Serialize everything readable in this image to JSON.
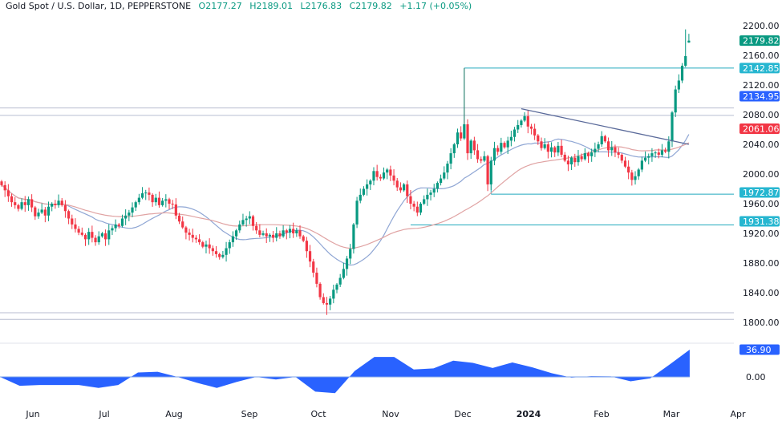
{
  "header": {
    "symbol": "Gold Spot / U.S. Dollar, 1D, PEPPERSTONE",
    "open": "O2177.27",
    "high": "H2189.01",
    "low": "L2176.83",
    "close": "C2179.82",
    "change": "+1.17 (+0.05%)"
  },
  "colors": {
    "up": "#089981",
    "down": "#f23645",
    "ma_fast": "#8fa6d4",
    "ma_slow": "#e0a3a3",
    "level": "#22a9bd",
    "zone": "#b8bdd0",
    "trendline": "#5a6a9a",
    "oscillator": "#2962ff"
  },
  "chart_data": {
    "type": "candlestick",
    "instrument": "Gold Spot / U.S. Dollar",
    "timeframe": "1D",
    "y_axis": {
      "range": [
        1800,
        2200
      ],
      "ticks": [
        "2200.00",
        "2160.00",
        "2120.00",
        "2080.00",
        "2040.00",
        "2000.00",
        "1960.00",
        "1920.00",
        "1880.00",
        "1840.00",
        "1800.00"
      ]
    },
    "x_axis": {
      "ticks": [
        "Jun",
        "Jul",
        "Aug",
        "Sep",
        "Oct",
        "Nov",
        "Dec",
        "2024",
        "Feb",
        "Mar",
        "Apr"
      ]
    },
    "last_candle": {
      "open": 2177.27,
      "high": 2189.01,
      "low": 2176.83,
      "close": 2179.82
    },
    "closes": [
      1985,
      1978,
      1970,
      1962,
      1958,
      1953,
      1962,
      1958,
      1966,
      1955,
      1943,
      1948,
      1952,
      1944,
      1956,
      1960,
      1958,
      1964,
      1958,
      1950,
      1940,
      1932,
      1926,
      1921,
      1918,
      1912,
      1922,
      1914,
      1908,
      1916,
      1920,
      1912,
      1924,
      1927,
      1932,
      1930,
      1940,
      1944,
      1948,
      1955,
      1962,
      1968,
      1974,
      1975,
      1972,
      1962,
      1968,
      1958,
      1964,
      1966,
      1960,
      1959,
      1944,
      1936,
      1928,
      1921,
      1918,
      1914,
      1912,
      1908,
      1902,
      1905,
      1900,
      1896,
      1892,
      1888,
      1891,
      1900,
      1908,
      1916,
      1924,
      1932,
      1938,
      1940,
      1943,
      1930,
      1924,
      1918,
      1920,
      1916,
      1918,
      1914,
      1920,
      1916,
      1924,
      1921,
      1926,
      1920,
      1924,
      1916,
      1910,
      1896,
      1882,
      1867,
      1852,
      1834,
      1826,
      1824,
      1832,
      1844,
      1851,
      1860,
      1872,
      1886,
      1899,
      1932,
      1964,
      1972,
      1980,
      1986,
      1991,
      2004,
      1996,
      1994,
      2002,
      2006,
      1998,
      1991,
      1982,
      1978,
      1986,
      1970,
      1960,
      1956,
      1948,
      1960,
      1966,
      1972,
      1975,
      1980,
      1988,
      1994,
      2002,
      2014,
      2028,
      2040,
      2056,
      2048,
      2067,
      2028,
      2045,
      2032,
      2020,
      2018,
      2024,
      1986,
      2018,
      2035,
      2030,
      2042,
      2036,
      2045,
      2050,
      2060,
      2066,
      2072,
      2078,
      2064,
      2061,
      2052,
      2044,
      2035,
      2040,
      2030,
      2036,
      2029,
      2038,
      2026,
      2018,
      2013,
      2022,
      2016,
      2024,
      2020,
      2028,
      2024,
      2029,
      2034,
      2040,
      2051,
      2044,
      2032,
      2036,
      2029,
      2026,
      2018,
      2010,
      2002,
      1992,
      1997,
      2006,
      2018,
      2022,
      2024,
      2028,
      2029,
      2026,
      2032,
      2030,
      2044,
      2083,
      2114,
      2126,
      2146,
      2159,
      2177.27
    ],
    "notable_highs": {
      "dec_spike": 2142.85,
      "mar_peak": 2195
    },
    "notable_lows": {
      "oct_low": 1810
    },
    "levels": [
      {
        "value": 2142.85,
        "label": "2142.85"
      },
      {
        "value": 1972.87,
        "label": "1972.87"
      },
      {
        "value": 1931.38,
        "label": "1931.38"
      }
    ],
    "zones": [
      [
        2079,
        2089
      ],
      [
        1804,
        1813
      ]
    ],
    "trendline": {
      "from": 2088,
      "to": 2040
    },
    "moving_averages": [
      {
        "period": 20,
        "last_label": "2134.95"
      },
      {
        "period": 50,
        "last_label": "2061.06"
      }
    ],
    "price_label": "2179.82",
    "oscillator": {
      "values": [
        0,
        -12,
        -11,
        -11,
        -11,
        -15,
        -11,
        6,
        7,
        0,
        -8,
        -15,
        -7,
        0,
        -3.6,
        0,
        -20,
        -22,
        8,
        27,
        27,
        10,
        11.5,
        22,
        19,
        12,
        19.5,
        13,
        5,
        -1,
        1,
        0.7,
        -6,
        -2,
        17,
        36.9
      ],
      "last_label": "36.90",
      "zero_label": "0.00"
    }
  }
}
